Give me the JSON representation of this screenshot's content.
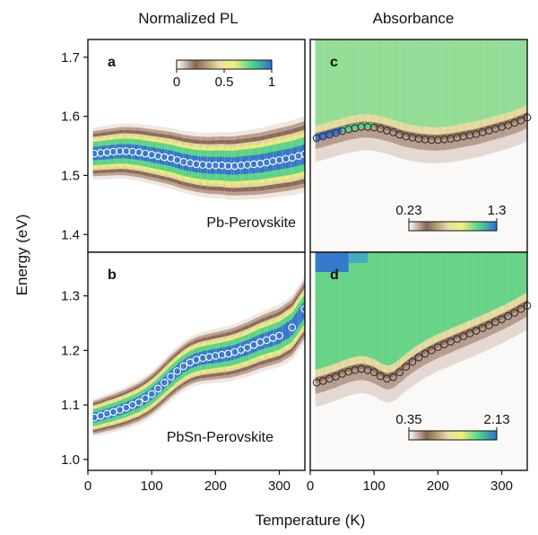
{
  "figure": {
    "col_titles": [
      "Normalized PL",
      "Absorbance"
    ],
    "xlabel": "Temperature (K)",
    "ylabel": "Energy (eV)"
  },
  "colors": {
    "colormap": [
      "#ffffff",
      "#8a6552",
      "#e7e0a4",
      "#f1f07a",
      "#4cd58a",
      "#2f6fd6"
    ],
    "marker_pl": "#ffffff",
    "marker_abs": "#333333"
  },
  "chart_data": [
    {
      "id": "a",
      "type": "heatmap",
      "panel_label": "a",
      "annotation": "Pb-Perovskite",
      "xlim": [
        0,
        340
      ],
      "ylim": [
        1.37,
        1.73
      ],
      "yticks": [
        1.4,
        1.5,
        1.6,
        1.7
      ],
      "ytick_labels": [
        "1.4",
        "1.5",
        "1.6",
        "1.7"
      ],
      "colorbar": {
        "ticks": [
          0,
          0.5,
          1
        ],
        "tick_labels": [
          "0",
          "0.5",
          "1"
        ]
      },
      "peak_x": [
        10,
        20,
        30,
        40,
        50,
        60,
        70,
        80,
        90,
        100,
        110,
        120,
        130,
        140,
        150,
        160,
        170,
        180,
        190,
        200,
        210,
        220,
        230,
        240,
        250,
        260,
        270,
        280,
        290,
        300,
        310,
        320,
        330,
        340
      ],
      "peak_y": [
        1.537,
        1.538,
        1.539,
        1.54,
        1.541,
        1.541,
        1.54,
        1.539,
        1.537,
        1.535,
        1.533,
        1.531,
        1.529,
        1.526,
        1.523,
        1.521,
        1.519,
        1.518,
        1.517,
        1.517,
        1.517,
        1.516,
        1.516,
        1.517,
        1.518,
        1.519,
        1.52,
        1.522,
        1.524,
        1.526,
        1.528,
        1.53,
        1.533,
        1.536
      ]
    },
    {
      "id": "b",
      "type": "heatmap",
      "panel_label": "b",
      "annotation": "PbSn-Perovskite",
      "xlim": [
        0,
        340
      ],
      "ylim": [
        0.98,
        1.38
      ],
      "yticks": [
        1.0,
        1.1,
        1.2,
        1.3
      ],
      "ytick_labels": [
        "1.0",
        "1.1",
        "1.2",
        "1.3"
      ],
      "peak_x": [
        10,
        20,
        30,
        40,
        50,
        60,
        70,
        80,
        90,
        100,
        110,
        120,
        130,
        140,
        150,
        160,
        170,
        180,
        190,
        200,
        210,
        220,
        230,
        240,
        250,
        260,
        270,
        280,
        290,
        300,
        320,
        340
      ],
      "peak_y": [
        1.077,
        1.08,
        1.084,
        1.087,
        1.091,
        1.095,
        1.1,
        1.105,
        1.112,
        1.12,
        1.13,
        1.141,
        1.152,
        1.162,
        1.171,
        1.178,
        1.183,
        1.186,
        1.188,
        1.19,
        1.192,
        1.194,
        1.197,
        1.201,
        1.205,
        1.21,
        1.215,
        1.219,
        1.223,
        1.227,
        1.242,
        1.276
      ]
    },
    {
      "id": "c",
      "type": "heatmap",
      "panel_label": "c",
      "xlim": [
        0,
        340
      ],
      "ylim": [
        1.37,
        1.73
      ],
      "colorbar": {
        "ticks": [
          0.23,
          1.3
        ],
        "tick_labels": [
          "0.23",
          "1.3"
        ]
      },
      "peak_x": [
        10,
        20,
        30,
        40,
        50,
        60,
        70,
        80,
        90,
        100,
        110,
        120,
        130,
        140,
        150,
        160,
        170,
        180,
        190,
        200,
        210,
        220,
        230,
        240,
        250,
        260,
        270,
        280,
        290,
        300,
        310,
        320,
        330,
        340
      ],
      "peak_y": [
        1.563,
        1.566,
        1.569,
        1.572,
        1.575,
        1.578,
        1.58,
        1.582,
        1.582,
        1.581,
        1.579,
        1.576,
        1.573,
        1.569,
        1.566,
        1.564,
        1.562,
        1.561,
        1.56,
        1.56,
        1.561,
        1.562,
        1.564,
        1.566,
        1.568,
        1.57,
        1.573,
        1.576,
        1.579,
        1.582,
        1.585,
        1.589,
        1.593,
        1.598
      ]
    },
    {
      "id": "d",
      "type": "heatmap",
      "panel_label": "d",
      "xlim": [
        0,
        340
      ],
      "ylim": [
        0.98,
        1.38
      ],
      "xticks": [
        0,
        100,
        200,
        300
      ],
      "xtick_labels": [
        "0",
        "100",
        "200",
        "300"
      ],
      "colorbar": {
        "ticks": [
          0.35,
          2.13
        ],
        "tick_labels": [
          "0.35",
          "2.13"
        ]
      },
      "peak_x": [
        10,
        20,
        30,
        40,
        50,
        60,
        70,
        80,
        90,
        100,
        110,
        120,
        130,
        140,
        150,
        160,
        170,
        180,
        190,
        200,
        210,
        220,
        230,
        240,
        250,
        260,
        270,
        280,
        290,
        300,
        310,
        320,
        330,
        340
      ],
      "peak_y": [
        1.141,
        1.144,
        1.148,
        1.152,
        1.157,
        1.161,
        1.164,
        1.166,
        1.164,
        1.16,
        1.153,
        1.148,
        1.151,
        1.16,
        1.17,
        1.179,
        1.187,
        1.194,
        1.2,
        1.206,
        1.211,
        1.216,
        1.221,
        1.226,
        1.231,
        1.236,
        1.241,
        1.246,
        1.252,
        1.257,
        1.263,
        1.269,
        1.276,
        1.282
      ]
    }
  ],
  "shared_xaxis": {
    "xticks": [
      0,
      100,
      200,
      300
    ],
    "xtick_labels": [
      "0",
      "100",
      "200",
      "300"
    ]
  }
}
